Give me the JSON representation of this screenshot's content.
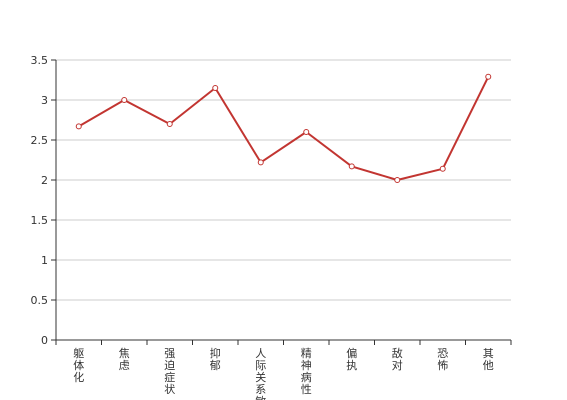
{
  "chart_data": {
    "type": "line",
    "categories": [
      "躯体化",
      "焦虑",
      "强迫症状",
      "抑郁",
      "人际关系敏感",
      "精神病性",
      "偏执",
      "敌对",
      "恐怖",
      "其他"
    ],
    "series": [
      {
        "values": [
          2.67,
          3.0,
          2.7,
          3.15,
          2.22,
          2.6,
          2.17,
          2.0,
          2.14,
          3.29
        ]
      }
    ],
    "ylim": [
      0,
      3.5
    ],
    "yticks": [
      0,
      0.5,
      1,
      1.5,
      2,
      2.5,
      3,
      3.5
    ],
    "grid": true,
    "colors": {
      "line": "#c23531",
      "grid": "#cccccc",
      "axis": "#333333",
      "text": "#333333"
    }
  }
}
